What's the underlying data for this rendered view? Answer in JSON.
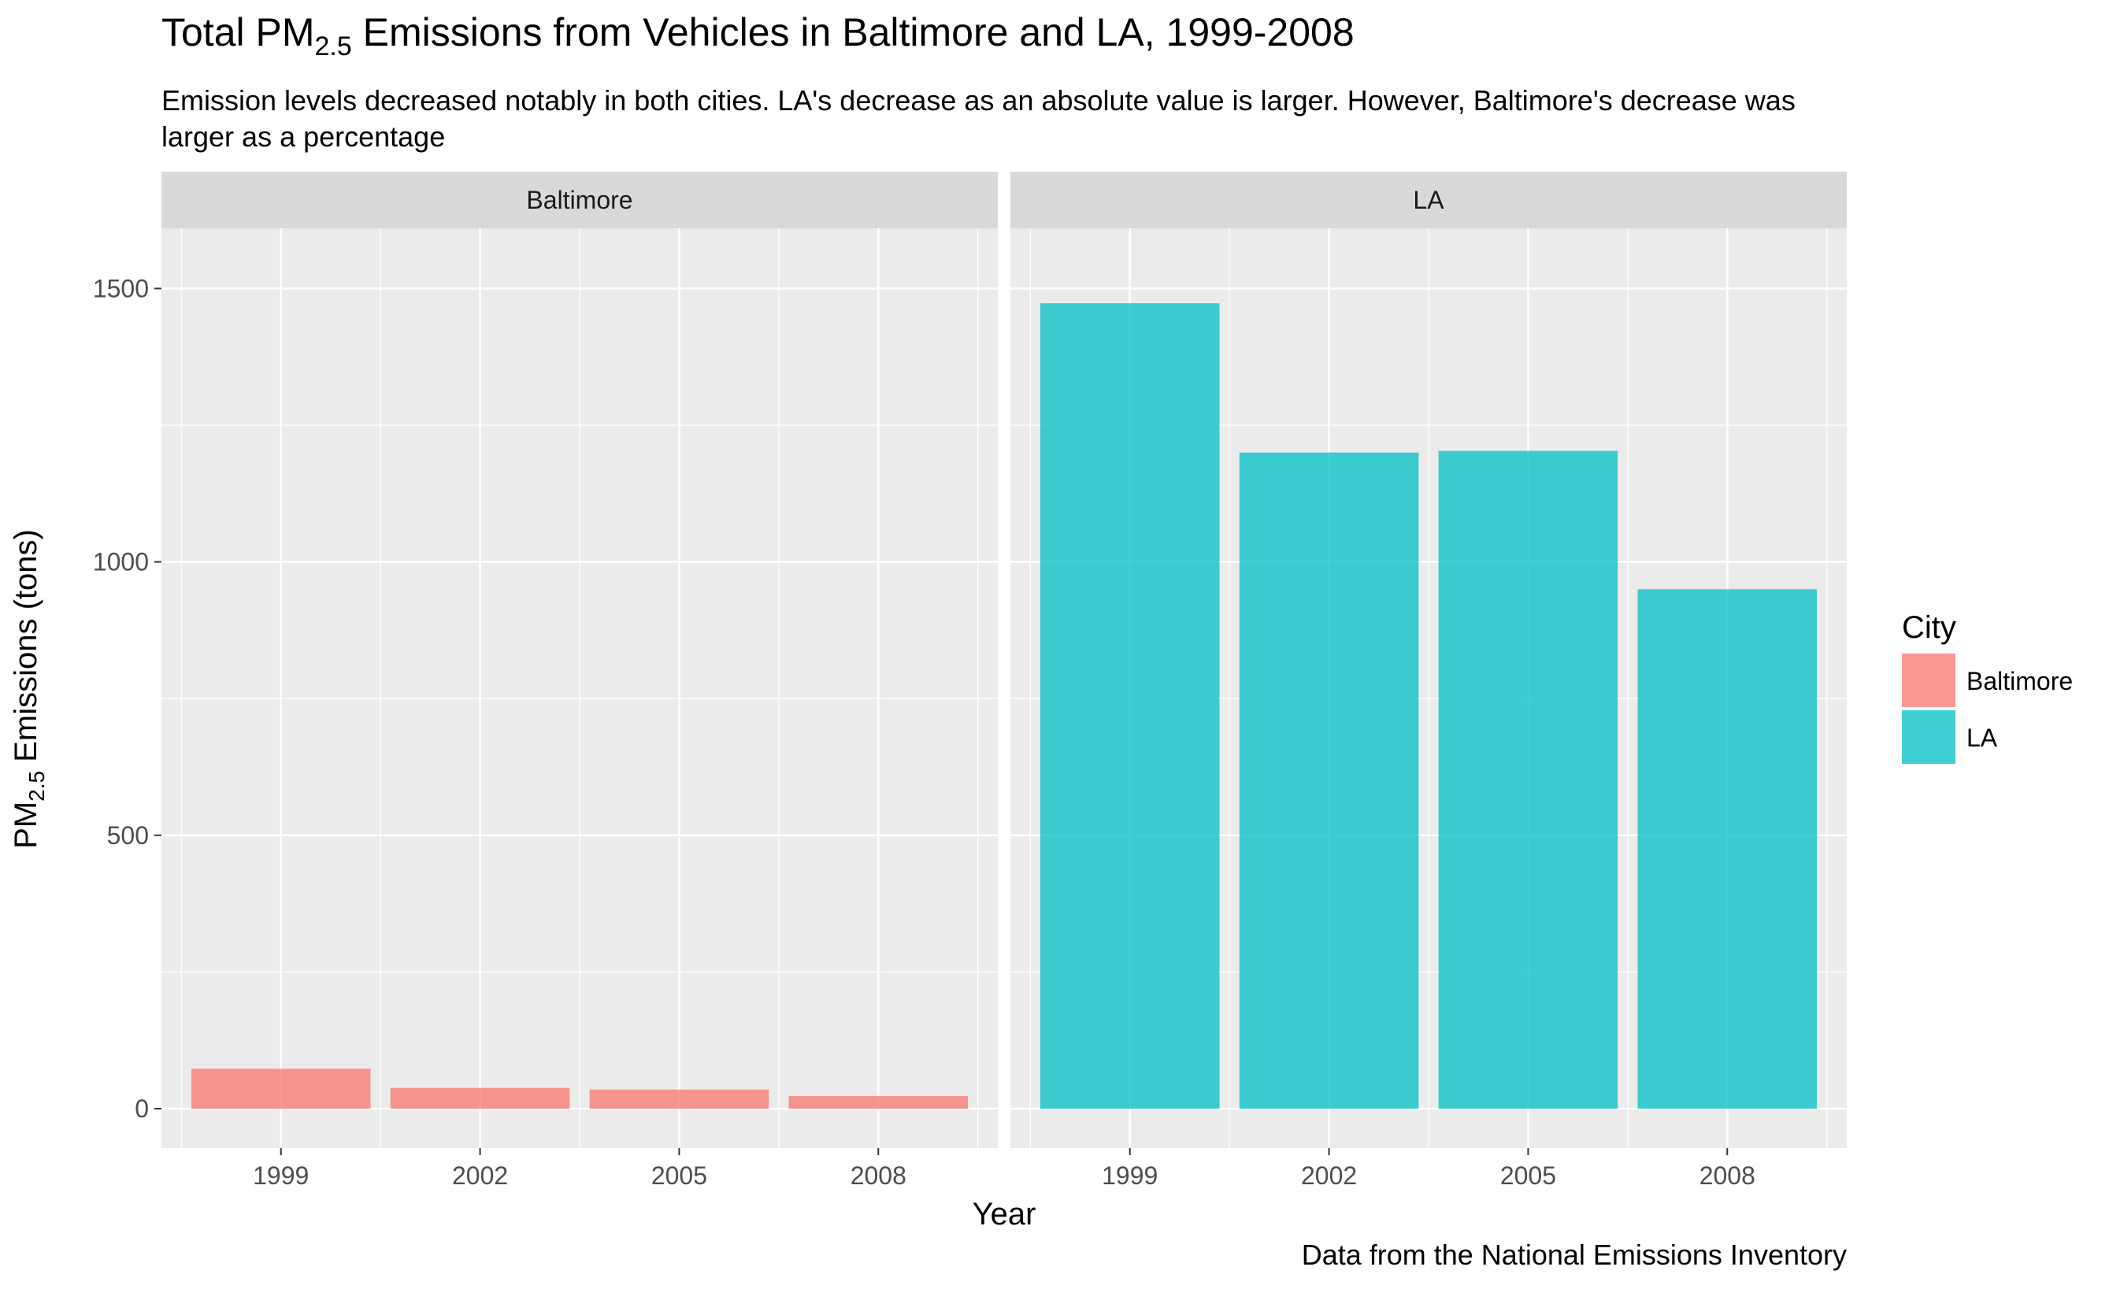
{
  "chart_data": {
    "type": "bar",
    "title": {
      "prefix": "Total PM",
      "subscript": "2.5",
      "suffix": " Emissions from Vehicles in Baltimore and LA, 1999-2008"
    },
    "subtitle": [
      "Emission levels decreased notably in both cities. LA's decrease as an absolute value is larger. However, Baltimore's decrease was",
      "larger as a percentage"
    ],
    "caption": "Data from the National Emissions Inventory",
    "xlabel": "Year",
    "ylabel": {
      "prefix": "PM",
      "subscript": "2.5",
      "suffix": " Emissions (tons)"
    },
    "categories": [
      "1999",
      "2002",
      "2005",
      "2008"
    ],
    "y_ticks": [
      "0",
      "500",
      "1000",
      "1500"
    ],
    "y_tick_values": [
      0,
      500,
      1000,
      1500
    ],
    "ylim": [
      -72,
      1610
    ],
    "facets": [
      {
        "label": "Baltimore",
        "series_name": "Baltimore",
        "color": "#F8766D",
        "values": [
          73,
          38,
          35,
          23
        ]
      },
      {
        "label": "LA",
        "series_name": "LA",
        "color": "#00BFC4",
        "values": [
          1473,
          1200,
          1203,
          950
        ]
      }
    ],
    "legend": {
      "title": "City",
      "position": "right",
      "items": [
        {
          "label": "Baltimore",
          "color": "#F8766D"
        },
        {
          "label": "LA",
          "color": "#00BFC4"
        }
      ]
    },
    "grid": true,
    "panel_background": "#EBEBEB",
    "strip_background": "#D9D9D9",
    "bar_opacity": 0.75
  }
}
